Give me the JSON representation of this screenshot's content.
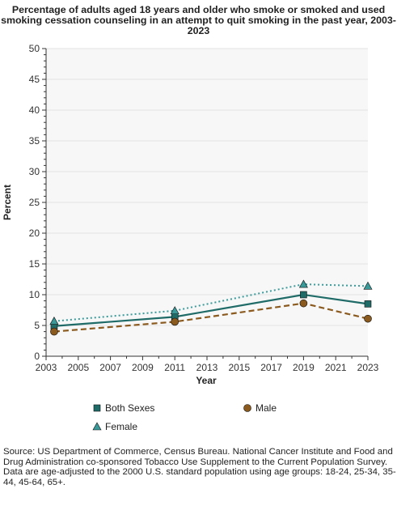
{
  "chart_data": {
    "type": "line",
    "title_lines": [
      "Percentage of adults aged 18 years and older who smoke or smoked and used",
      "smoking cessation counseling in an attempt to quit smoking in the past year, 2003-",
      "2023"
    ],
    "xlabel": "Year",
    "ylabel": "Percent",
    "xlim": [
      2003,
      2023
    ],
    "ylim": [
      0,
      50
    ],
    "xticks": [
      2003,
      2005,
      2007,
      2009,
      2011,
      2013,
      2015,
      2017,
      2019,
      2021,
      2023
    ],
    "yticks": [
      0,
      5,
      10,
      15,
      20,
      25,
      30,
      35,
      40,
      45,
      50
    ],
    "legend_position": "bottom",
    "series": [
      {
        "name": "Both Sexes",
        "color": "#1f6b68",
        "marker": "square",
        "line_style": "solid",
        "points": [
          {
            "x": 2003.5,
            "y": 4.9
          },
          {
            "x": 2011,
            "y": 6.4
          },
          {
            "x": 2019,
            "y": 10.0
          },
          {
            "x": 2023,
            "y": 8.5
          }
        ]
      },
      {
        "name": "Male",
        "color": "#8b5a1e",
        "marker": "circle",
        "line_style": "dashed",
        "points": [
          {
            "x": 2003.5,
            "y": 4.0
          },
          {
            "x": 2011,
            "y": 5.6
          },
          {
            "x": 2019,
            "y": 8.6
          },
          {
            "x": 2023,
            "y": 6.1
          }
        ]
      },
      {
        "name": "Female",
        "color": "#3a9a9a",
        "marker": "triangle",
        "line_style": "dotted",
        "points": [
          {
            "x": 2003.5,
            "y": 5.7
          },
          {
            "x": 2011,
            "y": 7.4
          },
          {
            "x": 2019,
            "y": 11.7
          },
          {
            "x": 2023,
            "y": 11.4
          }
        ]
      }
    ]
  },
  "footnotes": {
    "source": "Source: US Department of Commerce, Census Bureau. National Cancer Institute and Food and Drug Administration co-sponsored Tobacco Use Supplement to the Current Population Survey.",
    "note": "Data are age-adjusted to the 2000 U.S. standard population using age groups: 18-24, 25-34, 35-44, 45-64, 65+."
  }
}
